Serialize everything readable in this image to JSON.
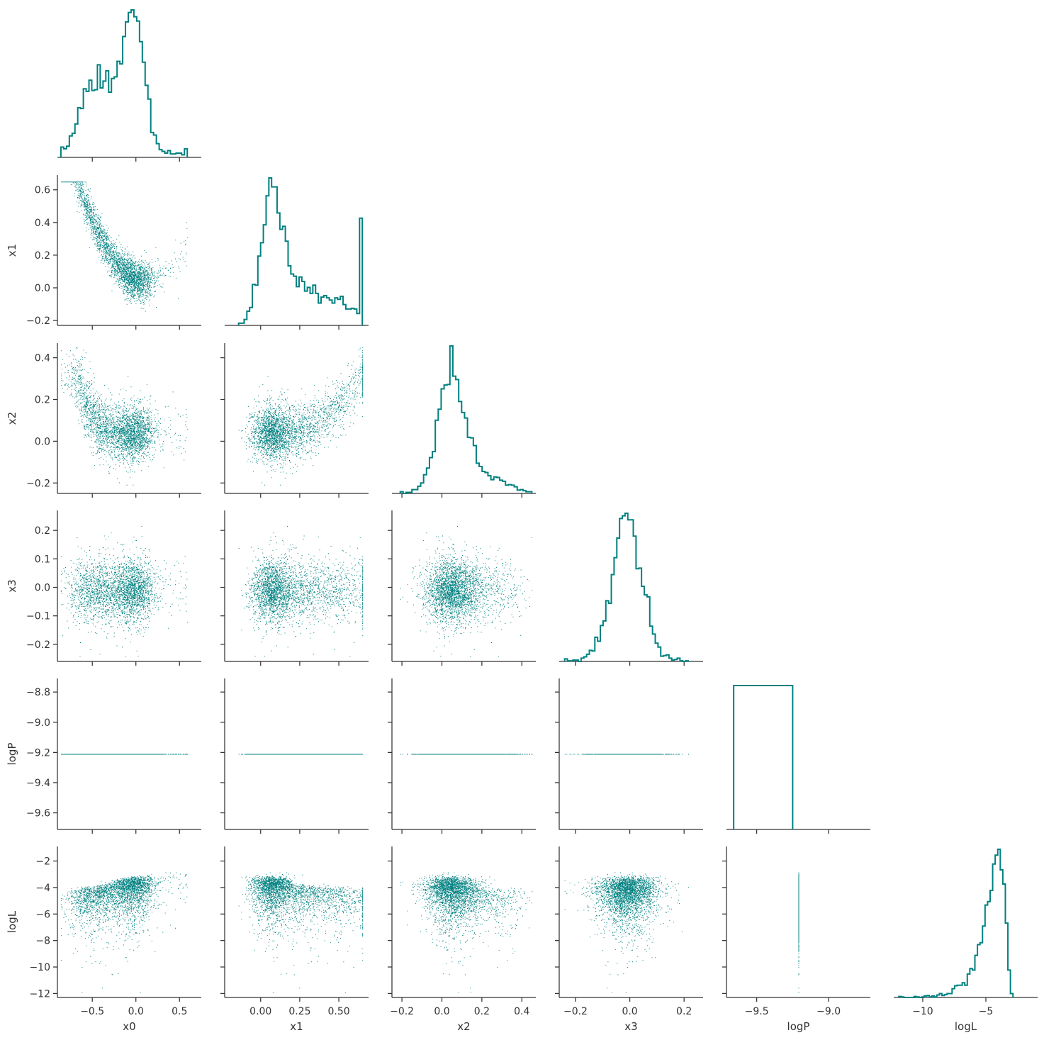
{
  "chart_data": {
    "type": "pairplot",
    "variables": [
      "x0",
      "x1",
      "x2",
      "x3",
      "logP",
      "logL"
    ],
    "layout": "lower-triangle corner plot: scatter below diagonal, step histograms on diagonal",
    "n_samples_approx": 3000,
    "colors": {
      "marks": "#008080",
      "axes": "#333333",
      "text": "#333333",
      "background": "#ffffff"
    },
    "ranges": {
      "x0": [
        -0.9,
        0.75
      ],
      "x1": [
        -0.23,
        0.69
      ],
      "x2": [
        -0.25,
        0.47
      ],
      "x3": [
        -0.26,
        0.27
      ],
      "logP": [
        -9.71,
        -8.71
      ],
      "logL": [
        -12.3,
        -0.9
      ]
    },
    "ticks": {
      "x0": [
        -0.5,
        0.0,
        0.5
      ],
      "x1": [
        0.0,
        0.25,
        0.5
      ],
      "x2": [
        -0.2,
        0.0,
        0.2,
        0.4
      ],
      "x3": [
        -0.2,
        0.0,
        0.2
      ],
      "logP": [
        -9.5,
        -9.0
      ],
      "logL": [
        -10,
        -5
      ]
    },
    "y_ticks": {
      "x1": [
        -0.2,
        0.0,
        0.2,
        0.4,
        0.6
      ],
      "x2": [
        -0.2,
        0.0,
        0.2,
        0.4
      ],
      "x3": [
        -0.2,
        -0.1,
        0.0,
        0.1,
        0.2
      ],
      "logP": [
        -9.6,
        -9.4,
        -9.2,
        -9.0,
        -8.8
      ],
      "logL": [
        -12,
        -10,
        -8,
        -6,
        -4,
        -2
      ]
    },
    "tick_labels": {
      "x0": [
        "−0.5",
        "0.0",
        "0.5"
      ],
      "x1": [
        "0.00",
        "0.25",
        "0.50"
      ],
      "x2": [
        "−0.2",
        "0.0",
        "0.2",
        "0.4"
      ],
      "x3": [
        "−0.2",
        "0.0",
        "0.2"
      ],
      "logP": [
        "−9.5",
        "−9.0"
      ],
      "logL": [
        "−10",
        "−5"
      ]
    },
    "y_tick_labels": {
      "x1": [
        "−0.2",
        "0.0",
        "0.2",
        "0.4",
        "0.6"
      ],
      "x2": [
        "−0.2",
        "0.0",
        "0.2",
        "0.4"
      ],
      "x3": [
        "−0.2",
        "−0.1",
        "0.0",
        "0.1",
        "0.2"
      ],
      "logP": [
        "−9.6",
        "−9.4",
        "−9.2",
        "−9.0",
        "−8.8"
      ],
      "logL": [
        "−12",
        "−10",
        "−8",
        "−6",
        "−4",
        "−2"
      ]
    },
    "marginals": {
      "x0": {
        "mean": -0.2,
        "sd": 0.22,
        "skew": "left-skewed, peak near 0.0"
      },
      "x1": {
        "mean": 0.1,
        "sd": 0.13,
        "skew": "right-skewed, peak near 0.05"
      },
      "x2": {
        "mean": 0.04,
        "sd": 0.07,
        "skew": "peak near 0.04"
      },
      "x3": {
        "mean": -0.01,
        "sd": 0.05,
        "skew": "symmetric, peak near 0.0"
      },
      "logP": {
        "value": -9.21,
        "note": "constant; histogram is a single box"
      },
      "logL": {
        "mode": -4.0,
        "skew": "long left tail to -12"
      }
    },
    "grid": false,
    "legend": "none"
  }
}
